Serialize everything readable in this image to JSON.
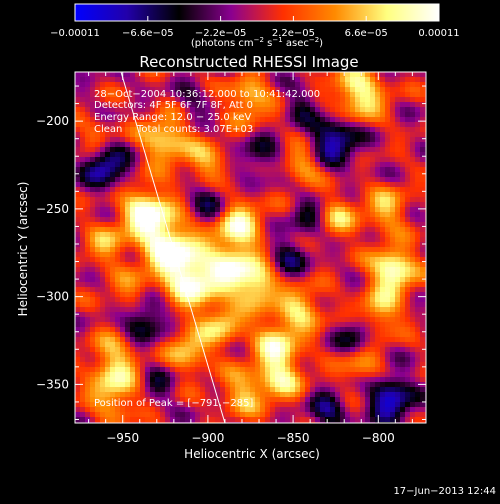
{
  "chart_data": {
    "type": "heatmap",
    "title": "Reconstructed RHESSI Image",
    "xlabel": "Heliocentric X (arcsec)",
    "ylabel": "Heliocentric Y (arcsec)",
    "xlim": [
      -978,
      -772
    ],
    "ylim": [
      -372,
      -172
    ],
    "x_ticks": [
      -950,
      -900,
      -850,
      -800
    ],
    "y_ticks": [
      -200,
      -250,
      -300,
      -350
    ],
    "x_tick_labels": [
      "−950",
      "−900",
      "−850",
      "−800"
    ],
    "y_tick_labels": [
      "−200",
      "−250",
      "−300",
      "−350"
    ],
    "colorbar": {
      "range": [
        -0.00011,
        0.00011
      ],
      "tick_labels": [
        "−0.00011",
        "−6.6e−05",
        "−2.2e−05",
        "2.2e−05",
        "6.6e−05",
        "0.00011"
      ],
      "unit_parts": [
        "(photons cm",
        "−2",
        " s",
        "−1",
        " asec",
        "−2",
        ")"
      ],
      "colors": [
        "#0000ff",
        "#2200aa",
        "#000000",
        "#8a0090",
        "#ff3000",
        "#ff8a00",
        "#ffff80",
        "#ffffff"
      ]
    },
    "annotations": {
      "time_range": "28−Oct−2004 10:36:12.000 to 10:41:42.000",
      "detectors": "Detectors: 4F 5F 6F 7F 8F, Att 0",
      "energy": "Energy Range: 12.0 − 25.0 keV",
      "clean_label": "Clean",
      "total_counts": "Total counts: 3.07E+03",
      "peak": "Position of Peak = [−791,−285]"
    },
    "limb_line": {
      "label": "",
      "points": [
        [
          -951,
          -172
        ],
        [
          -890,
          -372
        ]
      ]
    },
    "blobs": [
      {
        "x": -936,
        "y": -252,
        "v": 0.00011,
        "s": 10
      },
      {
        "x": -923,
        "y": -272,
        "v": 0.0001,
        "s": 11
      },
      {
        "x": -908,
        "y": -290,
        "v": 0.000105,
        "s": 12
      },
      {
        "x": -883,
        "y": -258,
        "v": 9e-05,
        "s": 10
      },
      {
        "x": -883,
        "y": -283,
        "v": 8.5e-05,
        "s": 10
      },
      {
        "x": -870,
        "y": -295,
        "v": 8e-05,
        "s": 8
      },
      {
        "x": -860,
        "y": -325,
        "v": 7.5e-05,
        "s": 9
      },
      {
        "x": -845,
        "y": -307,
        "v": 7e-05,
        "s": 9
      },
      {
        "x": -858,
        "y": -345,
        "v": 8e-05,
        "s": 10
      },
      {
        "x": -910,
        "y": -330,
        "v": 7e-05,
        "s": 9
      },
      {
        "x": -955,
        "y": -335,
        "v": 6e-05,
        "s": 10
      },
      {
        "x": -955,
        "y": -355,
        "v": 7e-05,
        "s": 10
      },
      {
        "x": -925,
        "y": -210,
        "v": 8e-05,
        "s": 10
      },
      {
        "x": -900,
        "y": -225,
        "v": 6e-05,
        "s": 9
      },
      {
        "x": -876,
        "y": -188,
        "v": 7e-05,
        "s": 9
      },
      {
        "x": -812,
        "y": -185,
        "v": 9e-05,
        "s": 11
      },
      {
        "x": -845,
        "y": -225,
        "v": 5.5e-05,
        "s": 8
      },
      {
        "x": -825,
        "y": -255,
        "v": 6e-05,
        "s": 9
      },
      {
        "x": -795,
        "y": -250,
        "v": 6e-05,
        "s": 9
      },
      {
        "x": -791,
        "y": -285,
        "v": 0.00011,
        "s": 9
      },
      {
        "x": -800,
        "y": -310,
        "v": 7e-05,
        "s": 9
      },
      {
        "x": -810,
        "y": -340,
        "v": 5e-05,
        "s": 9
      },
      {
        "x": -960,
        "y": -270,
        "v": 5e-05,
        "s": 9
      },
      {
        "x": -965,
        "y": -210,
        "v": 4e-05,
        "s": 8
      },
      {
        "x": -945,
        "y": -300,
        "v": 5e-05,
        "s": 9
      },
      {
        "x": -880,
        "y": -355,
        "v": 6e-05,
        "s": 9
      },
      {
        "x": -890,
        "y": -315,
        "v": 6.5e-05,
        "s": 8
      },
      {
        "x": -960,
        "y": -225,
        "v": -9e-05,
        "s": 9
      },
      {
        "x": -938,
        "y": -312,
        "v": -8e-05,
        "s": 9
      },
      {
        "x": -898,
        "y": -245,
        "v": -6e-05,
        "s": 9
      },
      {
        "x": -853,
        "y": -278,
        "v": -5e-05,
        "s": 8
      },
      {
        "x": -825,
        "y": -210,
        "v": -9e-05,
        "s": 10
      },
      {
        "x": -812,
        "y": -322,
        "v": -6e-05,
        "s": 8
      },
      {
        "x": -793,
        "y": -358,
        "v": -0.0001,
        "s": 9
      },
      {
        "x": -840,
        "y": -255,
        "v": -5e-05,
        "s": 8
      },
      {
        "x": -870,
        "y": -220,
        "v": -5e-05,
        "s": 8
      },
      {
        "x": -830,
        "y": -365,
        "v": -6e-05,
        "s": 8
      },
      {
        "x": -930,
        "y": -350,
        "v": -4e-05,
        "s": 7
      },
      {
        "x": -910,
        "y": -190,
        "v": -3e-05,
        "s": 8
      },
      {
        "x": -845,
        "y": -190,
        "v": -4e-05,
        "s": 7
      }
    ],
    "grid": false
  },
  "footer": {
    "timestamp": "17−Jun−2013 12:44"
  }
}
